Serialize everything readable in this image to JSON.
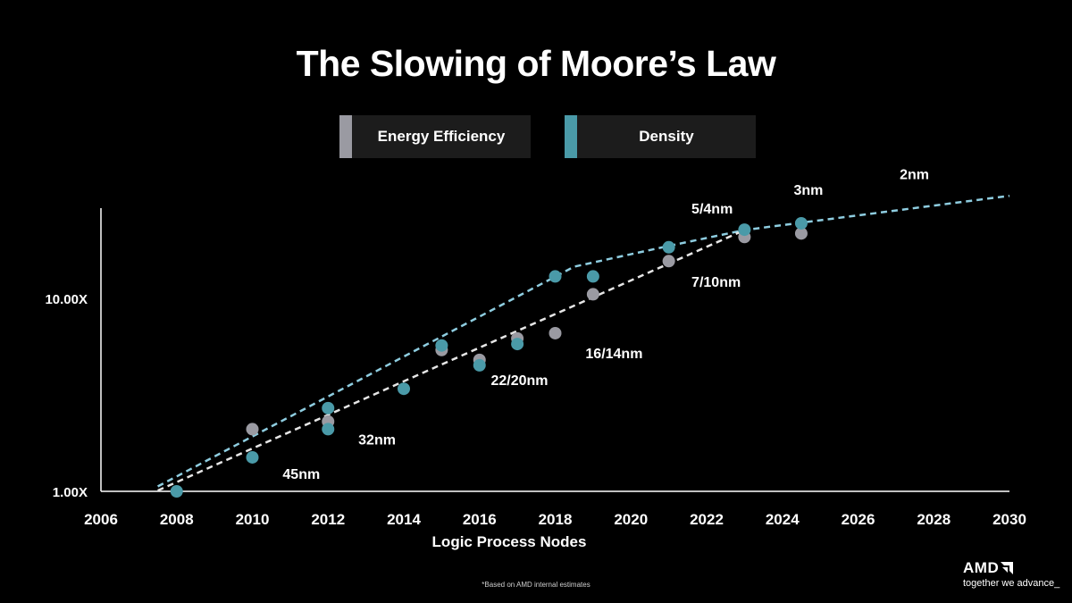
{
  "title": "The Slowing of Moore’s Law",
  "legend": [
    {
      "label": "Energy Efficiency",
      "color": "#9a9aa2"
    },
    {
      "label": "Density",
      "color": "#4a9aa8"
    }
  ],
  "footnote": "*Based on AMD internal estimates",
  "logo": {
    "brand": "AMD",
    "tagline": "together we advance_"
  },
  "colors": {
    "background": "#000000",
    "density": "#4a9aa8",
    "efficiency": "#9a9aa2",
    "density_trend": "#8ecde0",
    "efficiency_trend": "#e6e6e6"
  },
  "chart_data": {
    "type": "scatter",
    "xlabel": "Logic Process Nodes",
    "ylabel": "",
    "y_scale": "log",
    "xlim": [
      2006,
      2030
    ],
    "ylim": [
      1,
      30
    ],
    "x_ticks": [
      "2006",
      "2008",
      "2010",
      "2012",
      "2014",
      "2016",
      "2018",
      "2020",
      "2022",
      "2024",
      "2026",
      "2028",
      "2030"
    ],
    "y_ticks": [
      {
        "value": 1,
        "label": "1.00X"
      },
      {
        "value": 10,
        "label": "10.00X"
      }
    ],
    "series": [
      {
        "name": "Energy Efficiency",
        "points": [
          {
            "x": 2010,
            "y": 2.1
          },
          {
            "x": 2012,
            "y": 2.3
          },
          {
            "x": 2015,
            "y": 5.4
          },
          {
            "x": 2016,
            "y": 4.8
          },
          {
            "x": 2017,
            "y": 6.2
          },
          {
            "x": 2018,
            "y": 6.6
          },
          {
            "x": 2019,
            "y": 10.5
          },
          {
            "x": 2021,
            "y": 15.6
          },
          {
            "x": 2023,
            "y": 20.8
          },
          {
            "x": 2024.5,
            "y": 21.7
          }
        ]
      },
      {
        "name": "Density",
        "points": [
          {
            "x": 2008,
            "y": 1.0
          },
          {
            "x": 2010,
            "y": 1.5
          },
          {
            "x": 2012,
            "y": 2.7
          },
          {
            "x": 2012,
            "y": 2.1
          },
          {
            "x": 2014,
            "y": 3.4
          },
          {
            "x": 2015,
            "y": 5.7
          },
          {
            "x": 2016,
            "y": 4.5
          },
          {
            "x": 2017,
            "y": 5.8
          },
          {
            "x": 2018,
            "y": 13.0
          },
          {
            "x": 2019,
            "y": 13.0
          },
          {
            "x": 2021,
            "y": 18.4
          },
          {
            "x": 2023,
            "y": 22.7
          },
          {
            "x": 2024.5,
            "y": 24.5
          }
        ]
      }
    ],
    "trend_lines": [
      {
        "series": "Density",
        "points": [
          {
            "x": 2007.5,
            "y": 1.06
          },
          {
            "x": 2018.5,
            "y": 14.6
          },
          {
            "x": 2021,
            "y": 18.7
          },
          {
            "x": 2023,
            "y": 22.6
          },
          {
            "x": 2030,
            "y": 34
          }
        ]
      },
      {
        "series": "Energy Efficiency",
        "points": [
          {
            "x": 2007.5,
            "y": 1.01
          },
          {
            "x": 2023,
            "y": 22.6
          }
        ]
      }
    ],
    "annotations": [
      {
        "text": "45nm",
        "x": 2010.8,
        "y": 1.16
      },
      {
        "text": "32nm",
        "x": 2012.8,
        "y": 1.75
      },
      {
        "text": "22/20nm",
        "x": 2016.3,
        "y": 3.55
      },
      {
        "text": "16/14nm",
        "x": 2018.8,
        "y": 4.9
      },
      {
        "text": "7/10nm",
        "x": 2021.6,
        "y": 11.5
      },
      {
        "text": "5/4nm",
        "x": 2021.6,
        "y": 27.5
      },
      {
        "text": "3nm",
        "x": 2024.3,
        "y": 34.5
      },
      {
        "text": "2nm",
        "x": 2027.1,
        "y": 41.5
      }
    ]
  }
}
